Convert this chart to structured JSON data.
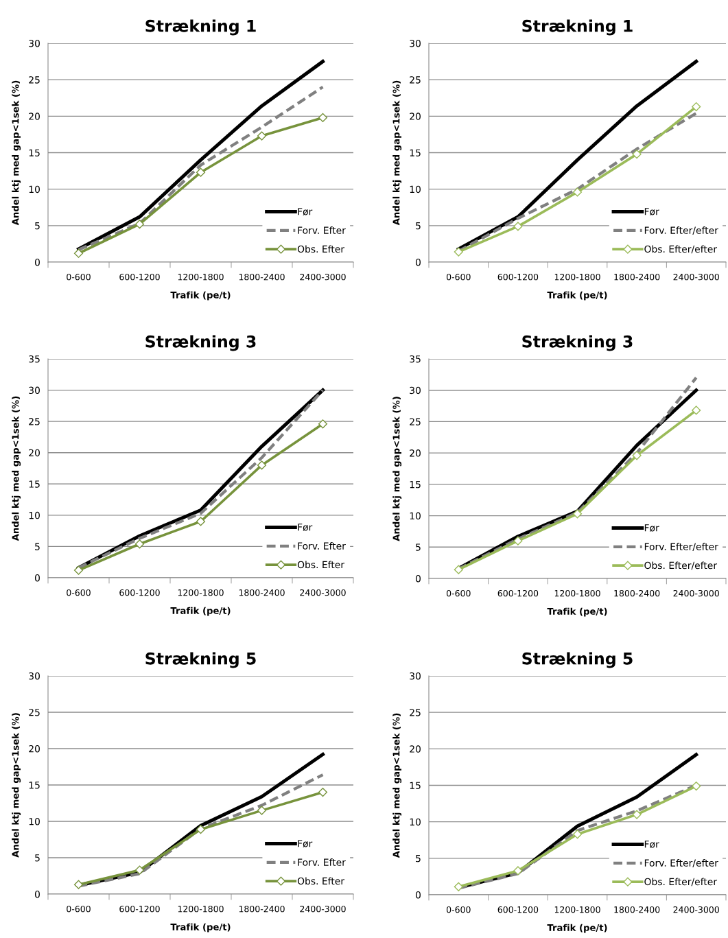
{
  "chart_data": [
    {
      "type": "line",
      "title": "Strækning 1",
      "xlabel": "Trafik (pe/t)",
      "ylabel": "Andel ktj med gap<1sek (%)",
      "categories": [
        "0-600",
        "600-1200",
        "1200-1800",
        "1800-2400",
        "2400-3000"
      ],
      "ylim": [
        0,
        30
      ],
      "yticks": [
        0,
        5,
        10,
        15,
        20,
        25,
        30
      ],
      "grid": "y",
      "legend": "bottom right",
      "series": [
        {
          "name": "Før",
          "color": "#000000",
          "line_style": "solid",
          "marker": "none",
          "values": [
            1.8,
            6.2,
            14.0,
            21.4,
            27.5
          ]
        },
        {
          "name": "Forv. Efter",
          "color": "#808080",
          "line_style": "dashed",
          "marker": "none",
          "values": [
            1.7,
            5.3,
            13.3,
            18.5,
            24.0
          ]
        },
        {
          "name": "Obs. Efter",
          "color": "#77933c",
          "line_style": "solid",
          "marker": "diamond",
          "values": [
            1.2,
            5.2,
            12.3,
            17.3,
            19.8
          ]
        }
      ]
    },
    {
      "type": "line",
      "title": "Strækning 1",
      "xlabel": "Trafik (pe/t)",
      "ylabel": "Andel ktj med gap<1sek (%)",
      "categories": [
        "0-600",
        "600-1200",
        "1200-1800",
        "1800-2400",
        "2400-3000"
      ],
      "ylim": [
        0,
        30
      ],
      "yticks": [
        0,
        5,
        10,
        15,
        20,
        25,
        30
      ],
      "grid": "y",
      "legend": "bottom right",
      "series": [
        {
          "name": "Før",
          "color": "#000000",
          "line_style": "solid",
          "marker": "none",
          "values": [
            1.8,
            6.2,
            14.0,
            21.4,
            27.5
          ]
        },
        {
          "name": "Forv. Efter/efter",
          "color": "#808080",
          "line_style": "dashed",
          "marker": "none",
          "values": [
            1.5,
            6.0,
            10.0,
            15.5,
            20.4
          ]
        },
        {
          "name": "Obs. Efter/efter",
          "color": "#9bbb59",
          "line_style": "solid",
          "marker": "diamond",
          "values": [
            1.4,
            4.9,
            9.6,
            14.8,
            21.3
          ]
        }
      ]
    },
    {
      "type": "line",
      "title": "Strækning 3",
      "xlabel": "Trafik (pe/t)",
      "ylabel": "Andel ktj med gap<1sek (%)",
      "categories": [
        "0-600",
        "600-1200",
        "1200-1800",
        "1800-2400",
        "2400-3000"
      ],
      "ylim": [
        0,
        35
      ],
      "yticks": [
        0,
        5,
        10,
        15,
        20,
        25,
        30,
        35
      ],
      "grid": "y",
      "legend": "bottom right",
      "series": [
        {
          "name": "Før",
          "color": "#000000",
          "line_style": "solid",
          "marker": "none",
          "values": [
            1.6,
            6.7,
            10.8,
            21.0,
            30.0
          ]
        },
        {
          "name": "Forv. Efter",
          "color": "#808080",
          "line_style": "dashed",
          "marker": "none",
          "values": [
            1.6,
            6.3,
            10.3,
            19.2,
            30.0
          ]
        },
        {
          "name": "Obs. Efter",
          "color": "#77933c",
          "line_style": "solid",
          "marker": "diamond",
          "values": [
            1.2,
            5.4,
            9.0,
            18.0,
            24.6
          ]
        }
      ]
    },
    {
      "type": "line",
      "title": "Strækning 3",
      "xlabel": "Trafik (pe/t)",
      "ylabel": "Andel ktj med gap<1sek (%)",
      "categories": [
        "0-600",
        "600-1200",
        "1200-1800",
        "1800-2400",
        "2400-3000"
      ],
      "ylim": [
        0,
        35
      ],
      "yticks": [
        0,
        5,
        10,
        15,
        20,
        25,
        30,
        35
      ],
      "grid": "y",
      "legend": "bottom right",
      "series": [
        {
          "name": "Før",
          "color": "#000000",
          "line_style": "solid",
          "marker": "none",
          "values": [
            1.6,
            6.7,
            10.7,
            21.2,
            30.0
          ]
        },
        {
          "name": "Forv. Efter/efter",
          "color": "#808080",
          "line_style": "dashed",
          "marker": "none",
          "values": [
            1.5,
            6.3,
            10.5,
            20.0,
            32.0
          ]
        },
        {
          "name": "Obs. Efter/efter",
          "color": "#9bbb59",
          "line_style": "solid",
          "marker": "diamond",
          "values": [
            1.4,
            6.0,
            10.3,
            19.6,
            26.8
          ]
        }
      ]
    },
    {
      "type": "line",
      "title": "Strækning 5",
      "xlabel": "Trafik (pe/t)",
      "ylabel": "Andel ktj med gap<1sek (%)",
      "categories": [
        "0-600",
        "600-1200",
        "1200-1800",
        "1800-2400",
        "2400-3000"
      ],
      "ylim": [
        0,
        30
      ],
      "yticks": [
        0,
        5,
        10,
        15,
        20,
        25,
        30
      ],
      "grid": "y",
      "legend": "bottom right",
      "series": [
        {
          "name": "Før",
          "color": "#000000",
          "line_style": "solid",
          "marker": "none",
          "values": [
            1.2,
            3.0,
            9.4,
            13.4,
            19.2
          ]
        },
        {
          "name": "Forv. Efter",
          "color": "#808080",
          "line_style": "dashed",
          "marker": "none",
          "values": [
            1.1,
            2.8,
            9.0,
            12.2,
            16.4
          ]
        },
        {
          "name": "Obs. Efter",
          "color": "#77933c",
          "line_style": "solid",
          "marker": "diamond",
          "values": [
            1.3,
            3.3,
            8.9,
            11.5,
            14.0
          ]
        }
      ]
    },
    {
      "type": "line",
      "title": "Strækning 5",
      "xlabel": "Trafik (pe/t)",
      "ylabel": "Andel ktj med gap<1sek (%)",
      "categories": [
        "0-600",
        "600-1200",
        "1200-1800",
        "1800-2400",
        "2400-3000"
      ],
      "ylim": [
        0,
        30
      ],
      "yticks": [
        0,
        5,
        10,
        15,
        20,
        25,
        30
      ],
      "grid": "y",
      "legend": "bottom right",
      "series": [
        {
          "name": "Før",
          "color": "#000000",
          "line_style": "solid",
          "marker": "none",
          "values": [
            1.0,
            3.0,
            9.4,
            13.4,
            19.2
          ]
        },
        {
          "name": "Forv. Efter/efter",
          "color": "#808080",
          "line_style": "dashed",
          "marker": "none",
          "values": [
            0.9,
            2.9,
            8.8,
            11.5,
            15.0
          ]
        },
        {
          "name": "Obs. Efter/efter",
          "color": "#9bbb59",
          "line_style": "solid",
          "marker": "diamond",
          "values": [
            1.1,
            3.3,
            8.3,
            11.0,
            14.9
          ]
        }
      ]
    }
  ]
}
